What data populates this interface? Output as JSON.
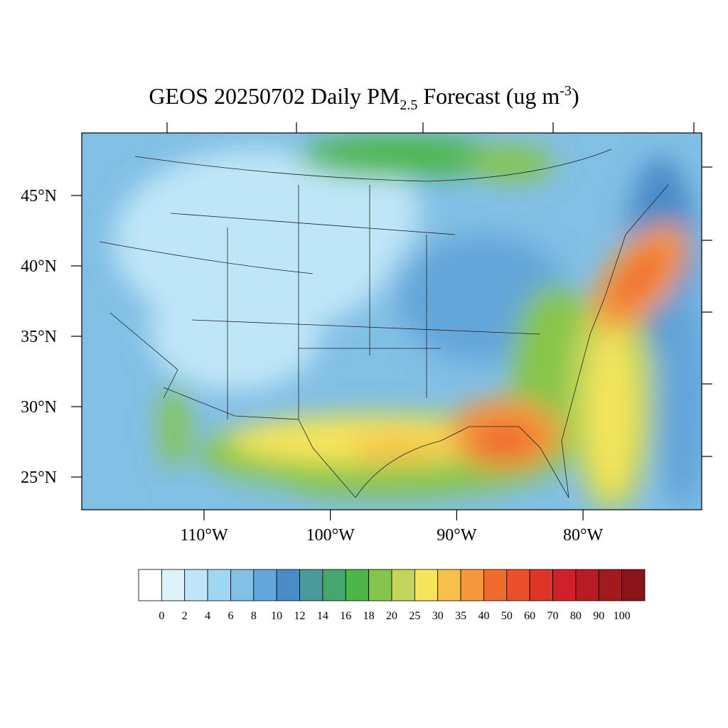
{
  "title": {
    "main": "GEOS 20250702 Daily PM",
    "sub": "2.5",
    "mid": "Forecast (ug m",
    "sup": "-3",
    "end": ")"
  },
  "map": {
    "lat_labels": [
      "45°N",
      "40°N",
      "35°N",
      "30°N",
      "25°N"
    ],
    "lon_labels": [
      "110°W",
      "100°W",
      "90°W",
      "80°W"
    ]
  },
  "colorbar": {
    "labels": [
      0,
      2,
      4,
      6,
      8,
      10,
      12,
      14,
      16,
      18,
      20,
      25,
      30,
      35,
      40,
      50,
      60,
      70,
      80,
      90,
      100
    ],
    "colors": [
      "#ffffff",
      "#ddf2fb",
      "#bfe6f8",
      "#a0d8f4",
      "#82bfe5",
      "#63a6da",
      "#4a8bc8",
      "#4a9a9a",
      "#47a56e",
      "#4db64b",
      "#86c54c",
      "#c3d65a",
      "#f6e55b",
      "#f8c04a",
      "#f6983c",
      "#f06c2e",
      "#e84f2a",
      "#dd3628",
      "#d0202a",
      "#b81c22",
      "#a01a1e",
      "#8a1418"
    ]
  }
}
